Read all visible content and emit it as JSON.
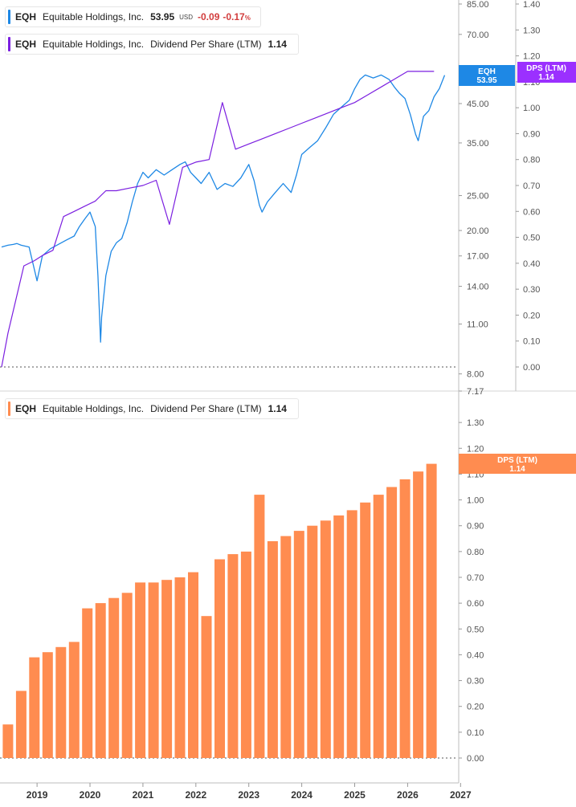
{
  "legend_price": {
    "symbol": "EQH",
    "name": "Equitable Holdings, Inc.",
    "value": "53.95",
    "currency": "USD",
    "change": "-0.09",
    "change_pct": "-0.17",
    "pct_sign": "%",
    "color": "#1e88e5"
  },
  "legend_dps_top": {
    "symbol": "EQH",
    "name": "Equitable Holdings, Inc.",
    "metric": "Dividend Per Share (LTM)",
    "value": "1.14",
    "color": "#7b1fe0"
  },
  "legend_dps_bottom": {
    "symbol": "EQH",
    "name": "Equitable Holdings, Inc.",
    "metric": "Dividend Per Share (LTM)",
    "value": "1.14",
    "color": "#ff8c50"
  },
  "tags": {
    "price_tag": {
      "line1": "EQH",
      "line2": "53.95",
      "color": "#1e88e5"
    },
    "dps_tag_top": {
      "line1": "DPS (LTM)",
      "line2": "1.14",
      "color": "#9b30ff"
    },
    "dps_tag_bottom": {
      "line1": "DPS (LTM)",
      "line2": "1.14",
      "color": "#ff8c50"
    }
  },
  "chart_data": [
    {
      "type": "line",
      "series": [
        {
          "name": "EQH",
          "scale": "log",
          "y_axis_ticks": [
            85.0,
            70.0,
            55.0,
            45.0,
            35.0,
            25.0,
            20.0,
            17.0,
            14.0,
            11.0,
            8.0,
            7.17
          ],
          "x": [
            2018.33,
            2018.45,
            2018.55,
            2018.62,
            2018.7,
            2018.85,
            2019.0,
            2019.1,
            2019.25,
            2019.4,
            2019.55,
            2019.7,
            2019.8,
            2019.9,
            2020.0,
            2020.1,
            2020.15,
            2020.2,
            2020.22,
            2020.3,
            2020.4,
            2020.5,
            2020.6,
            2020.7,
            2020.8,
            2020.9,
            2021.0,
            2021.1,
            2021.25,
            2021.4,
            2021.55,
            2021.7,
            2021.8,
            2021.9,
            2022.0,
            2022.1,
            2022.25,
            2022.4,
            2022.55,
            2022.7,
            2022.85,
            2023.0,
            2023.1,
            2023.2,
            2023.25,
            2023.35,
            2023.5,
            2023.65,
            2023.8,
            2023.9,
            2024.0,
            2024.15,
            2024.3,
            2024.45,
            2024.6,
            2024.75,
            2024.9,
            2025.0,
            2025.1,
            2025.2,
            2025.35,
            2025.5,
            2025.65,
            2025.75,
            2025.85,
            2025.95,
            2026.05,
            2026.15,
            2026.2,
            2026.3,
            2026.4,
            2026.5,
            2026.6,
            2026.7
          ],
          "values": [
            18.0,
            18.2,
            18.3,
            18.4,
            18.2,
            18.0,
            14.5,
            17.0,
            17.8,
            18.3,
            18.8,
            19.3,
            20.5,
            21.5,
            22.5,
            20.5,
            15.0,
            9.8,
            11.5,
            15.0,
            17.5,
            18.5,
            19.0,
            21.0,
            24.0,
            27.0,
            29.0,
            28.0,
            29.5,
            28.5,
            29.5,
            30.5,
            31.0,
            29.0,
            28.0,
            27.0,
            29.0,
            26.0,
            27.0,
            26.5,
            28.0,
            30.5,
            27.5,
            23.5,
            22.5,
            24.0,
            25.5,
            27.0,
            25.5,
            28.5,
            32.5,
            34.0,
            35.5,
            38.5,
            42.0,
            44.0,
            46.0,
            49.5,
            52.5,
            54.0,
            53.0,
            54.0,
            52.5,
            50.0,
            48.0,
            46.5,
            42.0,
            37.0,
            35.5,
            41.5,
            43.0,
            47.0,
            49.5,
            53.95
          ]
        },
        {
          "name": "DPS (LTM)",
          "scale": "linear",
          "y_axis_ticks": [
            1.4,
            1.3,
            1.2,
            1.1,
            1.0,
            0.9,
            0.8,
            0.7,
            0.6,
            0.5,
            0.4,
            0.3,
            0.2,
            0.1,
            0.0
          ],
          "x": [
            2018.33,
            2018.45,
            2018.6,
            2018.75,
            2018.95,
            2019.1,
            2019.3,
            2019.5,
            2019.7,
            2019.9,
            2020.1,
            2020.3,
            2020.5,
            2020.75,
            2021.0,
            2021.25,
            2021.5,
            2021.75,
            2022.0,
            2022.25,
            2022.5,
            2022.75,
            2023.0,
            2023.25,
            2023.5,
            2023.75,
            2024.0,
            2024.25,
            2024.5,
            2024.75,
            2025.0,
            2025.25,
            2025.5,
            2025.75,
            2026.0,
            2026.25,
            2026.5
          ],
          "values": [
            0.0,
            0.13,
            0.26,
            0.39,
            0.41,
            0.43,
            0.45,
            0.58,
            0.6,
            0.62,
            0.64,
            0.68,
            0.68,
            0.69,
            0.7,
            0.72,
            0.55,
            0.77,
            0.79,
            0.8,
            1.02,
            0.84,
            0.86,
            0.88,
            0.9,
            0.92,
            0.94,
            0.96,
            0.98,
            1.0,
            1.02,
            1.05,
            1.08,
            1.11,
            1.14,
            1.14,
            1.14
          ]
        }
      ],
      "x_range": [
        2018.3,
        2026.95
      ]
    },
    {
      "type": "bar",
      "series": [
        {
          "name": "Dividend Per Share (LTM)",
          "x": [
            2018.45,
            2018.7,
            2018.95,
            2019.2,
            2019.45,
            2019.7,
            2019.95,
            2020.2,
            2020.45,
            2020.7,
            2020.95,
            2021.2,
            2021.45,
            2021.7,
            2021.95,
            2022.2,
            2022.45,
            2022.7,
            2022.95,
            2023.2,
            2023.45,
            2023.7,
            2023.95,
            2024.2,
            2024.45,
            2024.7,
            2024.95,
            2025.2,
            2025.45,
            2025.7,
            2025.95,
            2026.2,
            2026.45
          ],
          "values": [
            0.13,
            0.26,
            0.39,
            0.41,
            0.43,
            0.45,
            0.58,
            0.6,
            0.62,
            0.64,
            0.68,
            0.68,
            0.69,
            0.7,
            0.72,
            0.55,
            0.77,
            0.79,
            0.8,
            1.02,
            0.84,
            0.86,
            0.88,
            0.9,
            0.92,
            0.94,
            0.96,
            0.99,
            1.02,
            1.05,
            1.08,
            1.11,
            1.14
          ]
        }
      ],
      "y_axis_ticks": [
        1.3,
        1.2,
        1.1,
        1.0,
        0.9,
        0.8,
        0.7,
        0.6,
        0.5,
        0.4,
        0.3,
        0.2,
        0.1,
        0.0
      ],
      "x_ticks": [
        "2019",
        "2020",
        "2021",
        "2022",
        "2023",
        "2024",
        "2025",
        "2026",
        "2027"
      ],
      "x_tick_values": [
        2019,
        2020,
        2021,
        2022,
        2023,
        2024,
        2025,
        2026,
        2027
      ],
      "x_range": [
        2018.3,
        2026.95
      ],
      "ylim": [
        0,
        1.4
      ],
      "color": "#ff8c50"
    }
  ]
}
